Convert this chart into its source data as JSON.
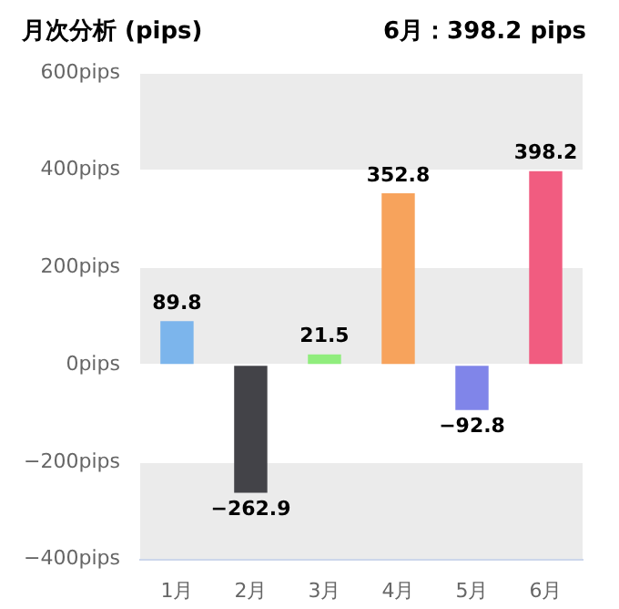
{
  "chart_data": {
    "type": "bar",
    "title": "月次分析 (pips)",
    "annotations": [
      "6月：398.2 pips"
    ],
    "categories": [
      "1月",
      "2月",
      "3月",
      "4月",
      "5月",
      "6月"
    ],
    "values": [
      89.8,
      -262.9,
      21.5,
      352.8,
      -92.8,
      398.2
    ],
    "colors": [
      "#7cb5ec",
      "#434348",
      "#90ed7d",
      "#f7a35c",
      "#8085e9",
      "#f15c80"
    ],
    "ylim": [
      -400,
      600
    ],
    "yticks": [
      {
        "value": -400,
        "label": "−400pips"
      },
      {
        "value": -200,
        "label": "−200pips"
      },
      {
        "value": 0,
        "label": "0pips"
      },
      {
        "value": 200,
        "label": "200pips"
      },
      {
        "value": 400,
        "label": "400pips"
      },
      {
        "value": 600,
        "label": "600pips"
      }
    ],
    "grid": "y",
    "legend": false,
    "data_labels": true
  }
}
